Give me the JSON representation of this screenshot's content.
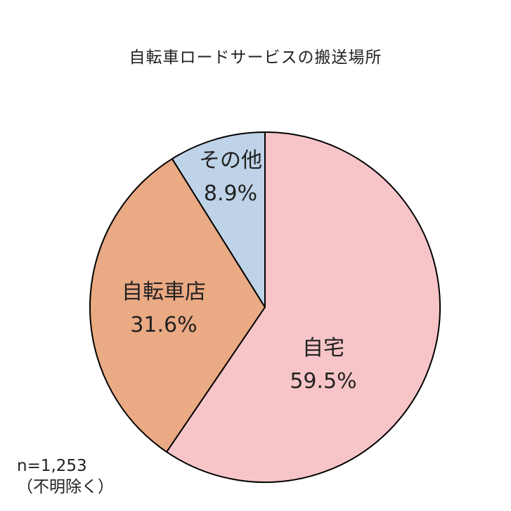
{
  "chart_data": {
    "type": "pie",
    "title": "自転車ロードサービスの搬送場所",
    "slices": [
      {
        "name": "自宅",
        "value": 59.5,
        "label": "59.5%",
        "color": "#f7c5c8"
      },
      {
        "name": "自転車店",
        "value": 31.6,
        "label": "31.6%",
        "color": "#eaaa83"
      },
      {
        "name": "その他",
        "value": 8.9,
        "label": "8.9%",
        "color": "#bfd3e8"
      }
    ],
    "start": "12 o'clock",
    "direction": "clockwise",
    "note": [
      "n=1,253",
      "（不明除く）"
    ]
  }
}
